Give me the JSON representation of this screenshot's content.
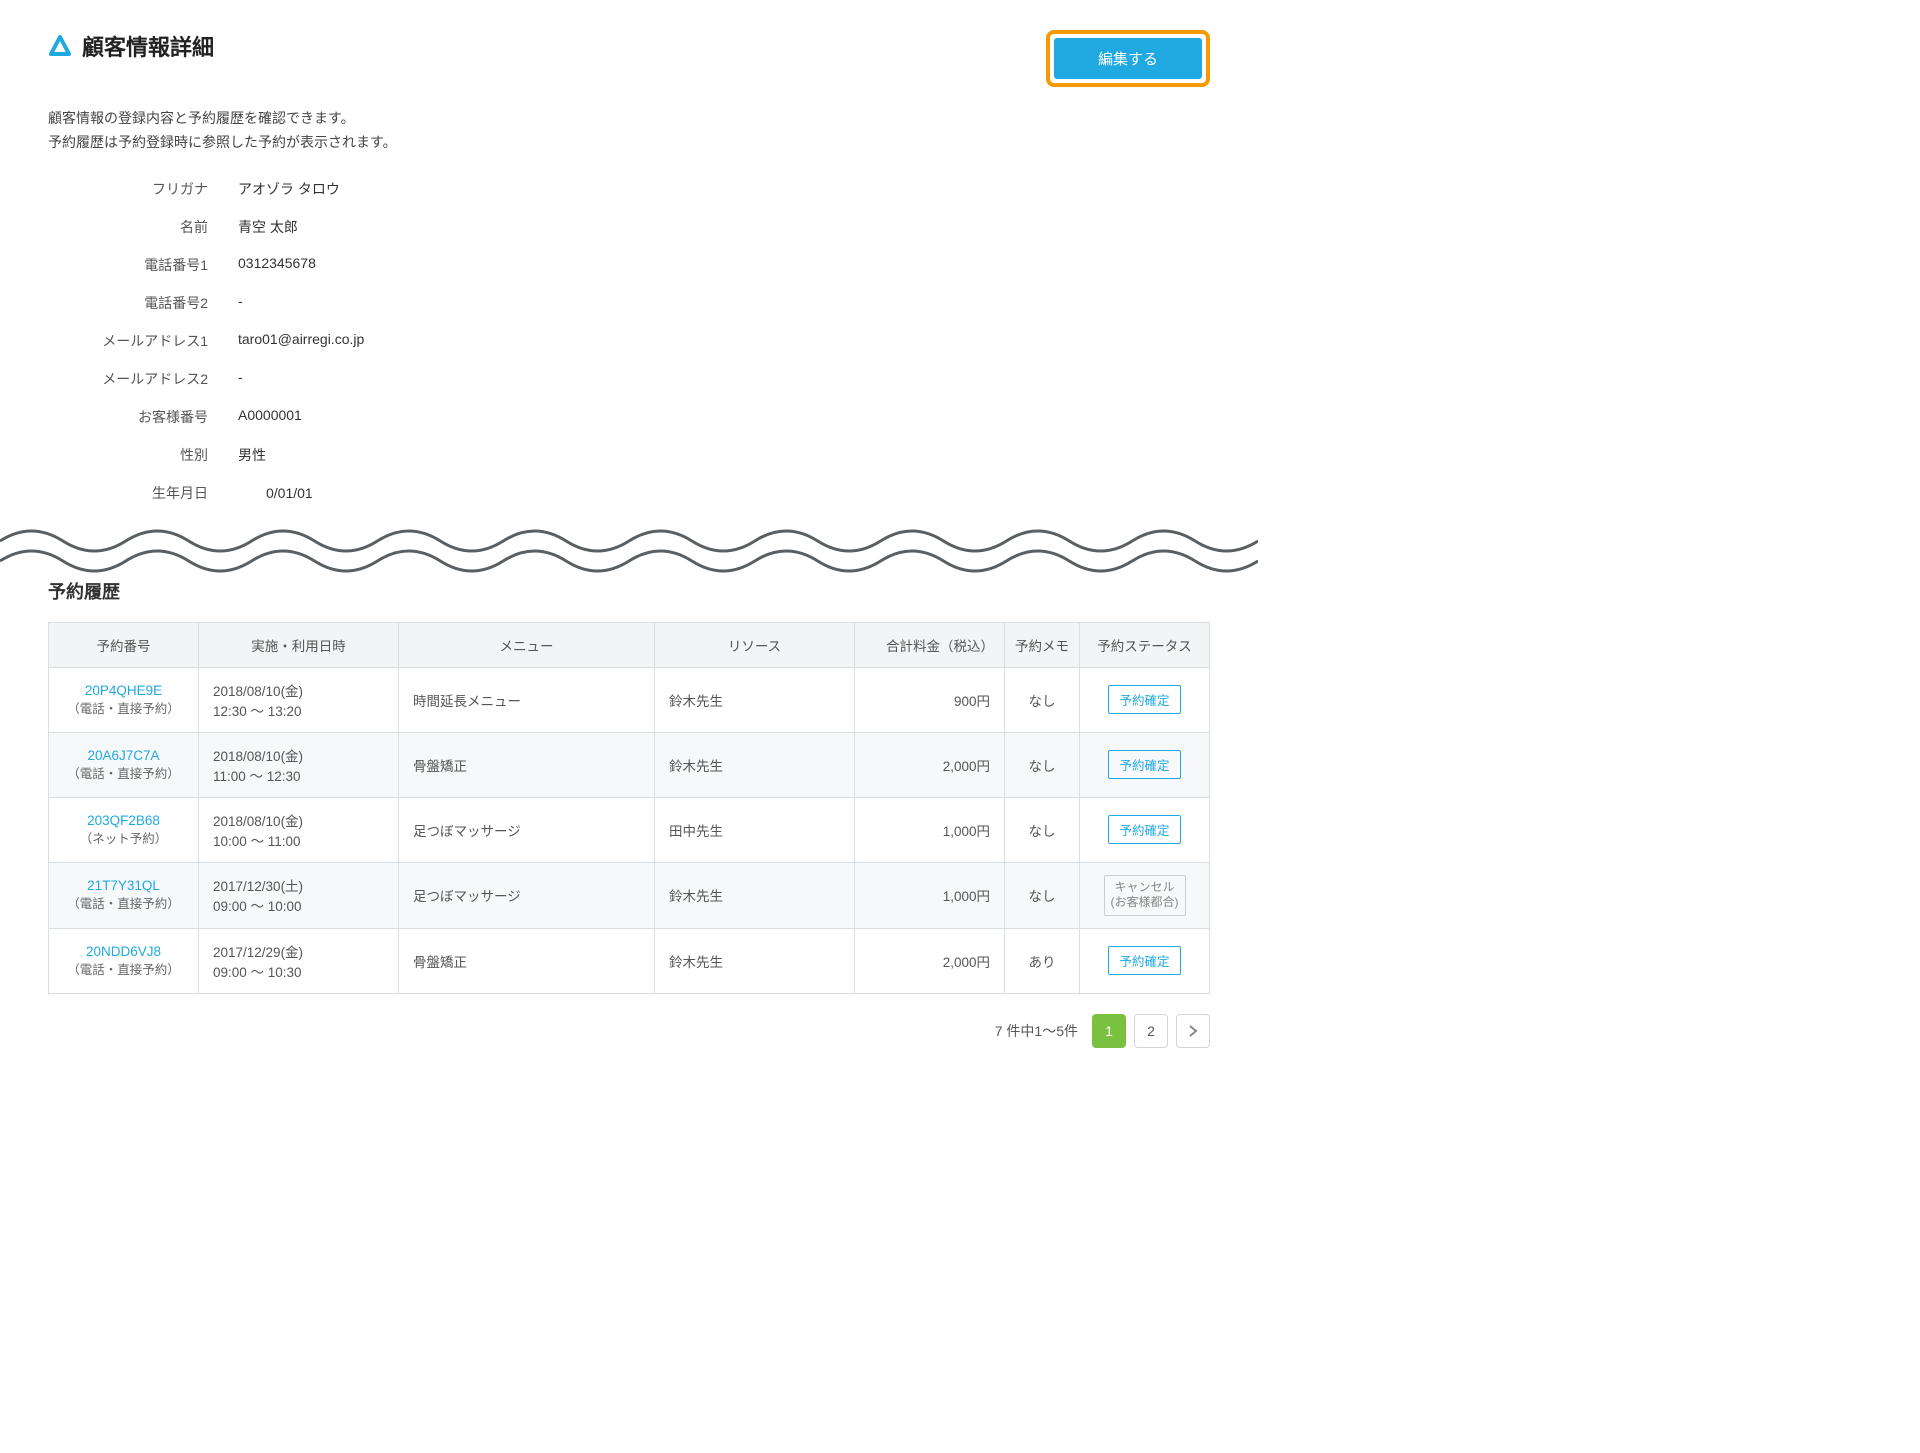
{
  "header": {
    "title": "顧客情報詳細",
    "edit_button": "編集する",
    "description_line1": "顧客情報の登録内容と予約履歴を確認できます。",
    "description_line2": "予約履歴は予約登録時に参照した予約が表示されます。"
  },
  "details": [
    {
      "label": "フリガナ",
      "value": "アオゾラ タロウ"
    },
    {
      "label": "名前",
      "value": "青空 太郎"
    },
    {
      "label": "電話番号1",
      "value": "0312345678"
    },
    {
      "label": "電話番号2",
      "value": "-"
    },
    {
      "label": "メールアドレス1",
      "value": "taro01@airregi.co.jp"
    },
    {
      "label": "メールアドレス2",
      "value": "-"
    },
    {
      "label": "お客様番号",
      "value": "A0000001"
    },
    {
      "label": "性別",
      "value": "男性"
    },
    {
      "label": "生年月日",
      "value": "　　0/01/01"
    }
  ],
  "history": {
    "section_title": "予約履歴",
    "columns": [
      "予約番号",
      "実施・利用日時",
      "メニュー",
      "リソース",
      "合計料金（税込）",
      "予約メモ",
      "予約ステータス"
    ],
    "rows": [
      {
        "id": "20P4QHE9E",
        "type": "（電話・直接予約）",
        "date": "2018/08/10(金)",
        "time": "12:30 ～ 13:20",
        "menu": "時間延長メニュー",
        "resource": "鈴木先生",
        "price": "900円",
        "memo": "なし",
        "status": "予約確定",
        "status_kind": "confirmed"
      },
      {
        "id": "20A6J7C7A",
        "type": "（電話・直接予約）",
        "date": "2018/08/10(金)",
        "time": "11:00 ～ 12:30",
        "menu": "骨盤矯正",
        "resource": "鈴木先生",
        "price": "2,000円",
        "memo": "なし",
        "status": "予約確定",
        "status_kind": "confirmed"
      },
      {
        "id": "203QF2B68",
        "type": "（ネット予約）",
        "date": "2018/08/10(金)",
        "time": "10:00 ～ 11:00",
        "menu": "足つぼマッサージ",
        "resource": "田中先生",
        "price": "1,000円",
        "memo": "なし",
        "status": "予約確定",
        "status_kind": "confirmed"
      },
      {
        "id": "21T7Y31QL",
        "type": "（電話・直接予約）",
        "date": "2017/12/30(土)",
        "time": "09:00 ～ 10:00",
        "menu": "足つぼマッサージ",
        "resource": "鈴木先生",
        "price": "1,000円",
        "memo": "なし",
        "status": "キャンセル",
        "status_sub": "(お客様都合)",
        "status_kind": "cancelled"
      },
      {
        "id": "20NDD6VJ8",
        "type": "（電話・直接予約）",
        "date": "2017/12/29(金)",
        "time": "09:00 ～ 10:30",
        "menu": "骨盤矯正",
        "resource": "鈴木先生",
        "price": "2,000円",
        "memo": "あり",
        "status": "予約確定",
        "status_kind": "confirmed"
      }
    ]
  },
  "pagination": {
    "info": "7 件中1〜5件",
    "current": "1",
    "next": "2"
  },
  "colors": {
    "accent": "#1fa9e0",
    "highlight_border": "#f59b00",
    "page_active": "#7ac142"
  }
}
